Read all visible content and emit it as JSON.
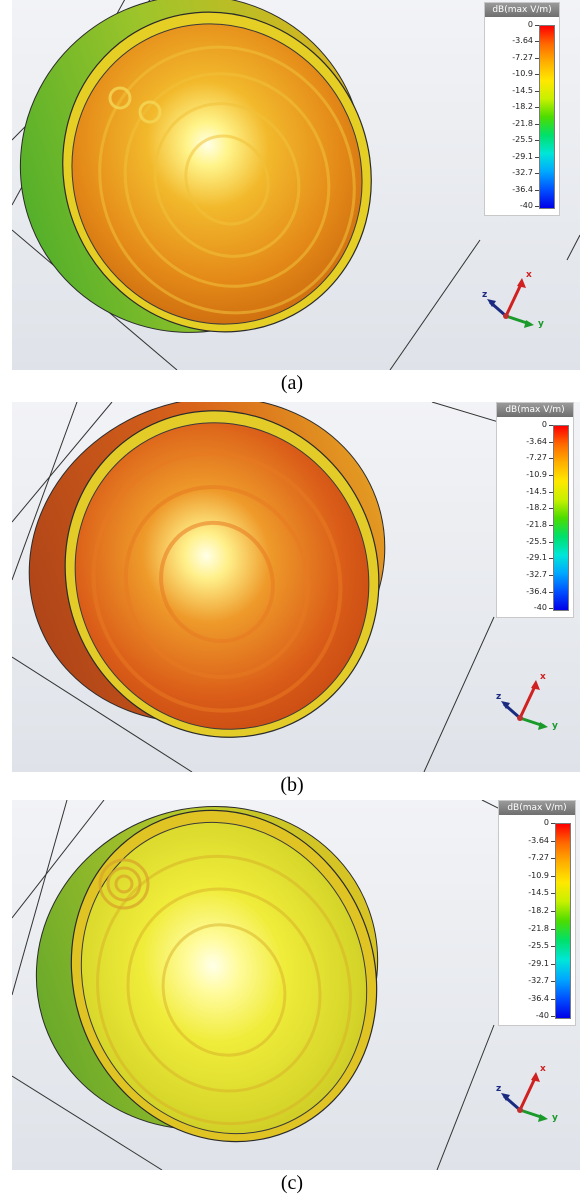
{
  "legend": {
    "title": "dB(max V/m)",
    "ticks": [
      "0",
      "-3.64",
      "-7.27",
      "-10.9",
      "-14.5",
      "-18.2",
      "-21.8",
      "-25.5",
      "-29.1",
      "-32.7",
      "-36.4",
      "-40"
    ]
  },
  "axes_labels": {
    "x": "x",
    "y": "y",
    "z": "z"
  },
  "panels": [
    {
      "caption": "(a)"
    },
    {
      "caption": "(b)"
    },
    {
      "caption": "(c)"
    }
  ],
  "colors": {
    "background": "#e6e9ee",
    "shell_a": "#e08a1c",
    "shell_b": "#d8551a",
    "shell_c": "#d9d820",
    "rim": "#e2cc22"
  }
}
